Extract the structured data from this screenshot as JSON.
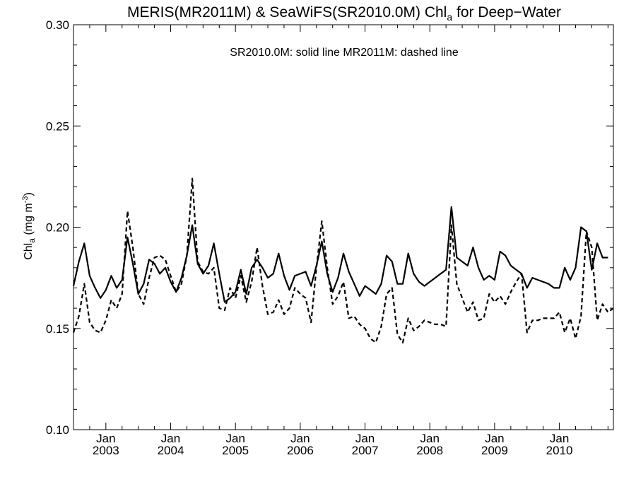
{
  "title_parts": {
    "main": "MERIS(MR2011M) & SeaWiFS(SR2010.0M)  Chl",
    "sub": "a",
    "tail": " for Deep−Water"
  },
  "annotation": "SR2010.0M: solid line   MR2011M: dashed line",
  "ylabel_parts": {
    "main": "Chl",
    "sub": "a",
    "unit": " (mg m",
    "sup": "-3",
    "close": ")"
  },
  "chart_data": {
    "type": "line",
    "x_unit": "month",
    "ylim": [
      0.1,
      0.3
    ],
    "xlim": [
      "2002-07",
      "2010-11"
    ],
    "y_ticks": [
      "0.10",
      "0.15",
      "0.20",
      "0.25",
      "0.30"
    ],
    "x_ticks": [
      {
        "month": "Jan",
        "year": "2003",
        "x": "2003-01"
      },
      {
        "month": "Jan",
        "year": "2004",
        "x": "2004-01"
      },
      {
        "month": "Jan",
        "year": "2005",
        "x": "2005-01"
      },
      {
        "month": "Jan",
        "year": "2006",
        "x": "2006-01"
      },
      {
        "month": "Jan",
        "year": "2007",
        "x": "2007-01"
      },
      {
        "month": "Jan",
        "year": "2008",
        "x": "2008-01"
      },
      {
        "month": "Jan",
        "year": "2009",
        "x": "2009-01"
      },
      {
        "month": "Jan",
        "year": "2010",
        "x": "2010-01"
      }
    ],
    "series": [
      {
        "name": "SR2010.0M",
        "style": "solid",
        "points": [
          [
            "2002-07",
            0.171
          ],
          [
            "2002-08",
            0.183
          ],
          [
            "2002-09",
            0.192
          ],
          [
            "2002-10",
            0.176
          ],
          [
            "2002-11",
            0.17
          ],
          [
            "2002-12",
            0.165
          ],
          [
            "2003-01",
            0.169
          ],
          [
            "2003-02",
            0.176
          ],
          [
            "2003-03",
            0.17
          ],
          [
            "2003-04",
            0.174
          ],
          [
            "2003-05",
            0.195
          ],
          [
            "2003-06",
            0.182
          ],
          [
            "2003-07",
            0.167
          ],
          [
            "2003-08",
            0.172
          ],
          [
            "2003-09",
            0.184
          ],
          [
            "2003-10",
            0.182
          ],
          [
            "2003-11",
            0.177
          ],
          [
            "2003-12",
            0.18
          ],
          [
            "2004-01",
            0.173
          ],
          [
            "2004-02",
            0.168
          ],
          [
            "2004-03",
            0.175
          ],
          [
            "2004-04",
            0.186
          ],
          [
            "2004-05",
            0.201
          ],
          [
            "2004-06",
            0.182
          ],
          [
            "2004-07",
            0.177
          ],
          [
            "2004-08",
            0.181
          ],
          [
            "2004-09",
            0.192
          ],
          [
            "2004-10",
            0.177
          ],
          [
            "2004-11",
            0.163
          ],
          [
            "2004-12",
            0.165
          ],
          [
            "2005-01",
            0.168
          ],
          [
            "2005-02",
            0.179
          ],
          [
            "2005-03",
            0.167
          ],
          [
            "2005-04",
            0.18
          ],
          [
            "2005-05",
            0.184
          ],
          [
            "2005-06",
            0.18
          ],
          [
            "2005-07",
            0.175
          ],
          [
            "2005-08",
            0.177
          ],
          [
            "2005-09",
            0.187
          ],
          [
            "2005-10",
            0.176
          ],
          [
            "2005-11",
            0.169
          ],
          [
            "2005-12",
            0.176
          ],
          [
            "2006-01",
            0.177
          ],
          [
            "2006-02",
            0.178
          ],
          [
            "2006-03",
            0.171
          ],
          [
            "2006-04",
            0.181
          ],
          [
            "2006-05",
            0.193
          ],
          [
            "2006-06",
            0.177
          ],
          [
            "2006-07",
            0.168
          ],
          [
            "2006-08",
            0.175
          ],
          [
            "2006-09",
            0.187
          ],
          [
            "2006-10",
            0.178
          ],
          [
            "2006-11",
            0.172
          ],
          [
            "2006-12",
            0.166
          ],
          [
            "2007-01",
            0.171
          ],
          [
            "2007-02",
            0.169
          ],
          [
            "2007-03",
            0.167
          ],
          [
            "2007-04",
            0.172
          ],
          [
            "2007-05",
            0.186
          ],
          [
            "2007-06",
            0.183
          ],
          [
            "2007-07",
            0.172
          ],
          [
            "2007-08",
            0.172
          ],
          [
            "2007-09",
            0.187
          ],
          [
            "2007-10",
            0.177
          ],
          [
            "2007-11",
            0.173
          ],
          [
            "2007-12",
            0.171
          ],
          [
            "2008-01",
            0.173
          ],
          [
            "2008-02",
            0.175
          ],
          [
            "2008-03",
            0.177
          ],
          [
            "2008-04",
            0.179
          ],
          [
            "2008-05",
            0.21
          ],
          [
            "2008-06",
            0.185
          ],
          [
            "2008-07",
            0.183
          ],
          [
            "2008-08",
            0.181
          ],
          [
            "2008-09",
            0.19
          ],
          [
            "2008-10",
            0.18
          ],
          [
            "2008-11",
            0.174
          ],
          [
            "2008-12",
            0.176
          ],
          [
            "2009-01",
            0.174
          ],
          [
            "2009-02",
            0.188
          ],
          [
            "2009-03",
            0.186
          ],
          [
            "2009-04",
            0.181
          ],
          [
            "2009-05",
            0.179
          ],
          [
            "2009-06",
            0.177
          ],
          [
            "2009-07",
            0.17
          ],
          [
            "2009-08",
            0.175
          ],
          [
            "2009-09",
            0.174
          ],
          [
            "2009-10",
            0.173
          ],
          [
            "2009-11",
            0.172
          ],
          [
            "2009-12",
            0.17
          ],
          [
            "2010-01",
            0.17
          ],
          [
            "2010-02",
            0.18
          ],
          [
            "2010-03",
            0.174
          ],
          [
            "2010-04",
            0.18
          ],
          [
            "2010-05",
            0.2
          ],
          [
            "2010-06",
            0.198
          ],
          [
            "2010-07",
            0.179
          ],
          [
            "2010-08",
            0.192
          ],
          [
            "2010-09",
            0.185
          ],
          [
            "2010-10",
            0.185
          ]
        ]
      },
      {
        "name": "MR2011M",
        "style": "dashed",
        "points": [
          [
            "2002-07",
            0.148
          ],
          [
            "2002-08",
            0.156
          ],
          [
            "2002-09",
            0.172
          ],
          [
            "2002-10",
            0.153
          ],
          [
            "2002-11",
            0.149
          ],
          [
            "2002-12",
            0.148
          ],
          [
            "2003-01",
            0.154
          ],
          [
            "2003-02",
            0.164
          ],
          [
            "2003-03",
            0.16
          ],
          [
            "2003-04",
            0.167
          ],
          [
            "2003-05",
            0.208
          ],
          [
            "2003-06",
            0.19
          ],
          [
            "2003-07",
            0.167
          ],
          [
            "2003-08",
            0.162
          ],
          [
            "2003-09",
            0.175
          ],
          [
            "2003-10",
            0.185
          ],
          [
            "2003-11",
            0.186
          ],
          [
            "2003-12",
            0.184
          ],
          [
            "2004-01",
            0.176
          ],
          [
            "2004-02",
            0.168
          ],
          [
            "2004-03",
            0.172
          ],
          [
            "2004-04",
            0.186
          ],
          [
            "2004-05",
            0.224
          ],
          [
            "2004-06",
            0.183
          ],
          [
            "2004-07",
            0.178
          ],
          [
            "2004-08",
            0.177
          ],
          [
            "2004-09",
            0.18
          ],
          [
            "2004-10",
            0.16
          ],
          [
            "2004-11",
            0.159
          ],
          [
            "2004-12",
            0.17
          ],
          [
            "2005-01",
            0.165
          ],
          [
            "2005-02",
            0.176
          ],
          [
            "2005-03",
            0.163
          ],
          [
            "2005-04",
            0.173
          ],
          [
            "2005-05",
            0.19
          ],
          [
            "2005-06",
            0.171
          ],
          [
            "2005-07",
            0.157
          ],
          [
            "2005-08",
            0.158
          ],
          [
            "2005-09",
            0.164
          ],
          [
            "2005-10",
            0.157
          ],
          [
            "2005-11",
            0.16
          ],
          [
            "2005-12",
            0.17
          ],
          [
            "2006-01",
            0.167
          ],
          [
            "2006-02",
            0.165
          ],
          [
            "2006-03",
            0.153
          ],
          [
            "2006-04",
            0.18
          ],
          [
            "2006-05",
            0.203
          ],
          [
            "2006-06",
            0.18
          ],
          [
            "2006-07",
            0.162
          ],
          [
            "2006-08",
            0.166
          ],
          [
            "2006-09",
            0.173
          ],
          [
            "2006-10",
            0.155
          ],
          [
            "2006-11",
            0.156
          ],
          [
            "2006-12",
            0.152
          ],
          [
            "2007-01",
            0.15
          ],
          [
            "2007-02",
            0.145
          ],
          [
            "2007-03",
            0.143
          ],
          [
            "2007-04",
            0.151
          ],
          [
            "2007-05",
            0.167
          ],
          [
            "2007-06",
            0.17
          ],
          [
            "2007-07",
            0.147
          ],
          [
            "2007-08",
            0.143
          ],
          [
            "2007-09",
            0.155
          ],
          [
            "2007-10",
            0.149
          ],
          [
            "2007-11",
            0.151
          ],
          [
            "2007-12",
            0.154
          ],
          [
            "2008-01",
            0.153
          ],
          [
            "2008-02",
            0.152
          ],
          [
            "2008-03",
            0.152
          ],
          [
            "2008-04",
            0.151
          ],
          [
            "2008-05",
            0.201
          ],
          [
            "2008-06",
            0.172
          ],
          [
            "2008-07",
            0.165
          ],
          [
            "2008-08",
            0.158
          ],
          [
            "2008-09",
            0.163
          ],
          [
            "2008-10",
            0.154
          ],
          [
            "2008-11",
            0.155
          ],
          [
            "2008-12",
            0.167
          ],
          [
            "2009-01",
            0.163
          ],
          [
            "2009-02",
            0.166
          ],
          [
            "2009-03",
            0.162
          ],
          [
            "2009-04",
            0.168
          ],
          [
            "2009-05",
            0.173
          ],
          [
            "2009-06",
            0.177
          ],
          [
            "2009-07",
            0.148
          ],
          [
            "2009-08",
            0.154
          ],
          [
            "2009-09",
            0.154
          ],
          [
            "2009-10",
            0.155
          ],
          [
            "2009-11",
            0.155
          ],
          [
            "2009-12",
            0.155
          ],
          [
            "2010-01",
            0.158
          ],
          [
            "2010-02",
            0.148
          ],
          [
            "2010-03",
            0.155
          ],
          [
            "2010-04",
            0.145
          ],
          [
            "2010-05",
            0.156
          ],
          [
            "2010-06",
            0.198
          ],
          [
            "2010-07",
            0.19
          ],
          [
            "2010-08",
            0.154
          ],
          [
            "2010-09",
            0.162
          ],
          [
            "2010-10",
            0.158
          ],
          [
            "2010-11",
            0.16
          ]
        ]
      }
    ]
  }
}
